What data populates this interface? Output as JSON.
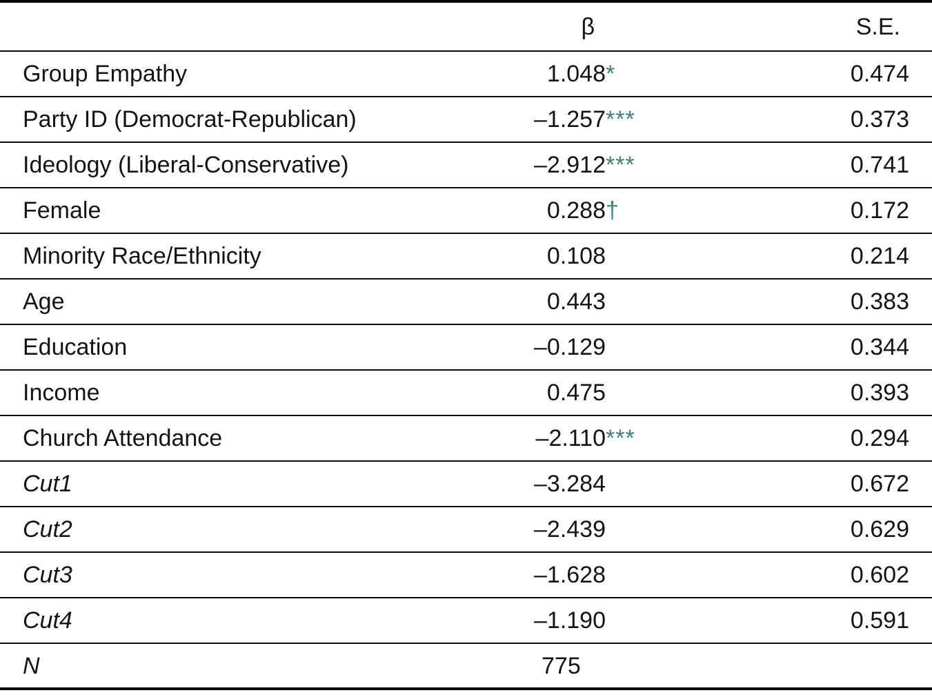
{
  "theme": {
    "marker_color": "#3b7f81",
    "text_color": "#141414",
    "rule_color": "#000000"
  },
  "table": {
    "columns": {
      "label": "",
      "beta": "β",
      "se": "S.E."
    },
    "rows": [
      {
        "label": "Group Empathy",
        "beta": "1.048",
        "marker": "*",
        "se": "0.474"
      },
      {
        "label": "Party ID (Democrat-Republican)",
        "beta": "–1.257",
        "marker": "***",
        "se": "0.373"
      },
      {
        "label": "Ideology (Liberal-Conservative)",
        "beta": "–2.912",
        "marker": "***",
        "se": "0.741"
      },
      {
        "label": "Female",
        "beta": "0.288",
        "marker": "†",
        "se": "0.172"
      },
      {
        "label": "Minority Race/Ethnicity",
        "beta": "0.108",
        "marker": "",
        "se": "0.214"
      },
      {
        "label": "Age",
        "beta": "0.443",
        "marker": "",
        "se": "0.383"
      },
      {
        "label": "Education",
        "beta": "–0.129",
        "marker": "",
        "se": "0.344"
      },
      {
        "label": "Income",
        "beta": "0.475",
        "marker": "",
        "se": "0.393"
      },
      {
        "label": "Church Attendance",
        "beta": "–2.110",
        "marker": "***",
        "se": "0.294"
      },
      {
        "label": "Cut1",
        "beta": "–3.284",
        "marker": "",
        "se": "0.672"
      },
      {
        "label": "Cut2",
        "beta": "–2.439",
        "marker": "",
        "se": "0.629"
      },
      {
        "label": "Cut3",
        "beta": "–1.628",
        "marker": "",
        "se": "0.602"
      },
      {
        "label": "Cut4",
        "beta": "–1.190",
        "marker": "",
        "se": "0.591"
      }
    ],
    "n_row": {
      "label": "N",
      "value": "775"
    }
  }
}
